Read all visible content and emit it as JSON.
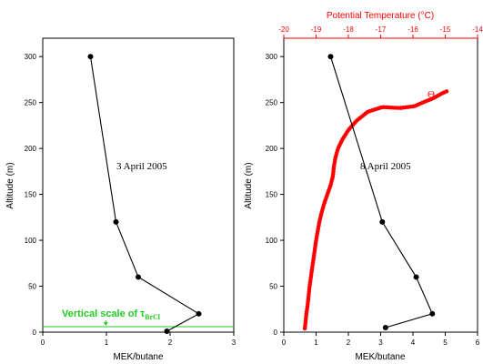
{
  "chart_data": [
    {
      "type": "line",
      "title": "",
      "xlabel": "MEK/butane",
      "ylabel": "Altitude (m)",
      "xlim": [
        0,
        3
      ],
      "ylim": [
        0,
        320
      ],
      "xticks": [
        "0",
        "1",
        "2",
        "3"
      ],
      "yticks": [
        "0",
        "50",
        "100",
        "150",
        "200",
        "250",
        "300"
      ],
      "annotation": "3 April 2005",
      "overlay_label": "Vertical scale of τ",
      "overlay_label_sub": "BrCl",
      "overlay_line_altitude": 6,
      "series": [
        {
          "points": [
            [
              0.75,
              300
            ],
            [
              1.15,
              120
            ],
            [
              1.5,
              60
            ],
            [
              2.45,
              20
            ],
            [
              1.95,
              1
            ]
          ],
          "color": "#000000"
        }
      ]
    },
    {
      "type": "line",
      "title": "",
      "xlabel": "MEK/butane",
      "ylabel": "Altitude (m)",
      "xlim": [
        0,
        6
      ],
      "ylim": [
        0,
        320
      ],
      "xticks": [
        "0",
        "1",
        "2",
        "3",
        "4",
        "5",
        "6"
      ],
      "yticks": [
        "0",
        "50",
        "100",
        "150",
        "200",
        "250",
        "300"
      ],
      "annotation": "8 April 2005",
      "secondary_x": {
        "label": "Potential Temperature (°C)",
        "lim": [
          -20,
          -14
        ],
        "ticks": [
          "-20",
          "-19",
          "-18",
          "-17",
          "-16",
          "-15",
          "-14"
        ],
        "color": "#ff0000"
      },
      "series": [
        {
          "points": [
            [
              1.45,
              300
            ],
            [
              3.05,
              120
            ],
            [
              4.1,
              60
            ],
            [
              4.6,
              20
            ],
            [
              3.15,
              5
            ]
          ],
          "color": "#000000"
        },
        {
          "name": "Θ",
          "axis": "secondary_x",
          "color": "#ff0000",
          "points": [
            [
              -19.35,
              4
            ],
            [
              -19.33,
              10
            ],
            [
              -19.3,
              20
            ],
            [
              -19.26,
              30
            ],
            [
              -19.23,
              40
            ],
            [
              -19.2,
              50
            ],
            [
              -19.16,
              60
            ],
            [
              -19.12,
              70
            ],
            [
              -19.08,
              80
            ],
            [
              -19.04,
              90
            ],
            [
              -19.0,
              100
            ],
            [
              -18.95,
              110
            ],
            [
              -18.9,
              120
            ],
            [
              -18.83,
              130
            ],
            [
              -18.75,
              140
            ],
            [
              -18.65,
              150
            ],
            [
              -18.55,
              160
            ],
            [
              -18.48,
              170
            ],
            [
              -18.45,
              180
            ],
            [
              -18.4,
              190
            ],
            [
              -18.32,
              200
            ],
            [
              -18.18,
              210
            ],
            [
              -18.0,
              220
            ],
            [
              -17.75,
              230
            ],
            [
              -17.4,
              240
            ],
            [
              -16.95,
              245
            ],
            [
              -16.4,
              244
            ],
            [
              -15.95,
              246
            ],
            [
              -15.7,
              250
            ],
            [
              -15.35,
              255
            ],
            [
              -15.1,
              260
            ],
            [
              -14.9,
              263
            ]
          ]
        }
      ]
    }
  ]
}
